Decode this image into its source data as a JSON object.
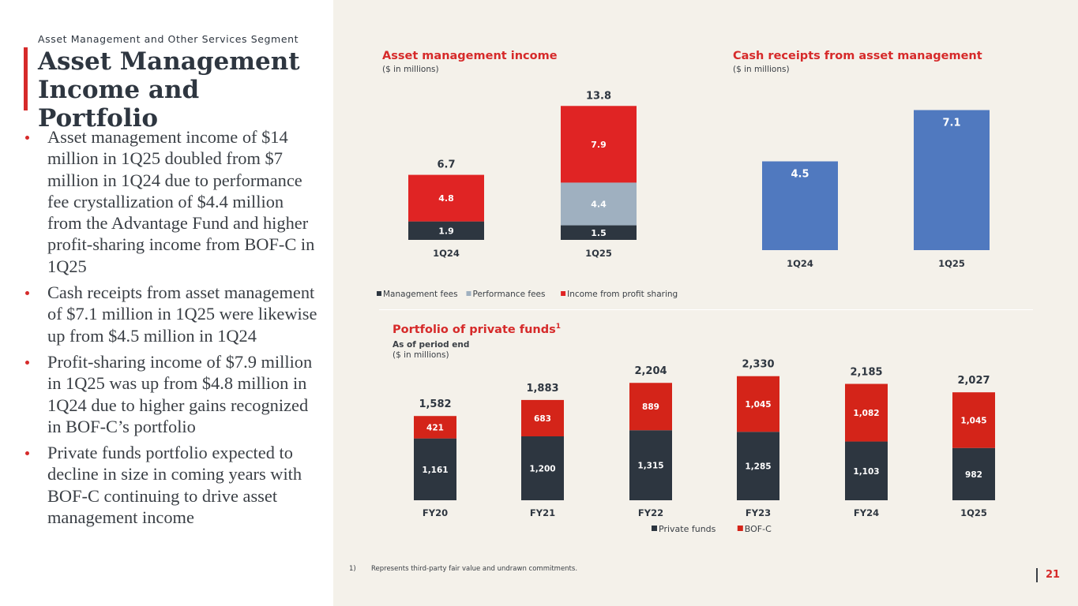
{
  "header": {
    "segment_label": "Asset Management and Other Services Segment",
    "title_line1": "Asset Management",
    "title_line2": "Income and Portfolio"
  },
  "bullets": [
    "Asset management income of $14 million in 1Q25 doubled from $7 million in 1Q24 due to performance fee crystallization of $4.4 million from the Advantage Fund and higher profit-sharing income from BOF-C in 1Q25",
    "Cash receipts from asset management of $7.1 million in 1Q25 were likewise up from $4.5 million in 1Q24",
    "Profit-sharing income of $7.9 million in 1Q25 was up from $4.8 million in 1Q24 due to higher gains recognized in BOF-C’s portfolio",
    "Private funds portfolio expected to decline in size in coming years with BOF-C continuing to drive asset management income"
  ],
  "colors": {
    "accent_red": "#d62a2a",
    "dark_navy": "#2d3640",
    "gray_blue": "#9fb0c0",
    "blue": "#5079bf",
    "bofc_red": "#d42419"
  },
  "chart_data": [
    {
      "id": "asset_management_income",
      "type": "bar",
      "stacked": true,
      "title": "Asset management income",
      "subtitle": "($ in millions)",
      "categories": [
        "1Q24",
        "1Q25"
      ],
      "series": [
        {
          "name": "Management fees",
          "values": [
            1.9,
            1.5
          ],
          "color": "#2d3640"
        },
        {
          "name": "Performance fees",
          "values": [
            0,
            4.4
          ],
          "color": "#9fb0c0"
        },
        {
          "name": "Income from profit sharing",
          "values": [
            4.8,
            7.9
          ],
          "color": "#e02424"
        }
      ],
      "totals": [
        "6.7",
        "13.8"
      ],
      "segment_labels": [
        [
          "1.9",
          "",
          "4.8"
        ],
        [
          "1.5",
          "4.4",
          "7.9"
        ]
      ],
      "legend": [
        "Management fees",
        "Performance fees",
        "Income from profit sharing"
      ],
      "legend_position": "bottom",
      "ylim": [
        0,
        15
      ],
      "grid": false
    },
    {
      "id": "cash_receipts",
      "type": "bar",
      "title": "Cash receipts from asset management",
      "subtitle": "($ in millions)",
      "categories": [
        "1Q24",
        "1Q25"
      ],
      "values": [
        4.5,
        7.1
      ],
      "value_labels": [
        "4.5",
        "7.1"
      ],
      "color": "#5079bf",
      "ylim": [
        0,
        8
      ],
      "grid": false
    },
    {
      "id": "portfolio_private_funds",
      "type": "bar",
      "stacked": true,
      "title": "Portfolio of private funds",
      "title_superscript": "1",
      "subtitle_line1": "As of period end",
      "subtitle_line2": "($ in millions)",
      "categories": [
        "FY20",
        "FY21",
        "FY22",
        "FY23",
        "FY24",
        "1Q25"
      ],
      "series": [
        {
          "name": "Private funds",
          "values": [
            1161,
            1200,
            1315,
            1285,
            1103,
            982
          ],
          "labels": [
            "1,161",
            "1,200",
            "1,315",
            "1,285",
            "1,103",
            "982"
          ],
          "color": "#2d3640"
        },
        {
          "name": "BOF-C",
          "values": [
            421,
            683,
            889,
            1045,
            1082,
            1045
          ],
          "labels": [
            "421",
            "683",
            "889",
            "1,045",
            "1,082",
            "1,045"
          ],
          "color": "#d42419"
        }
      ],
      "totals": [
        "1,582",
        "1,883",
        "2,204",
        "2,330",
        "2,185",
        "2,027"
      ],
      "legend": [
        "Private funds",
        "BOF-C"
      ],
      "legend_position": "bottom",
      "ylim": [
        0,
        2500
      ],
      "grid": false
    }
  ],
  "footnote": {
    "number": "1)",
    "text": "Represents third-party fair value and undrawn commitments."
  },
  "page_number": "21"
}
